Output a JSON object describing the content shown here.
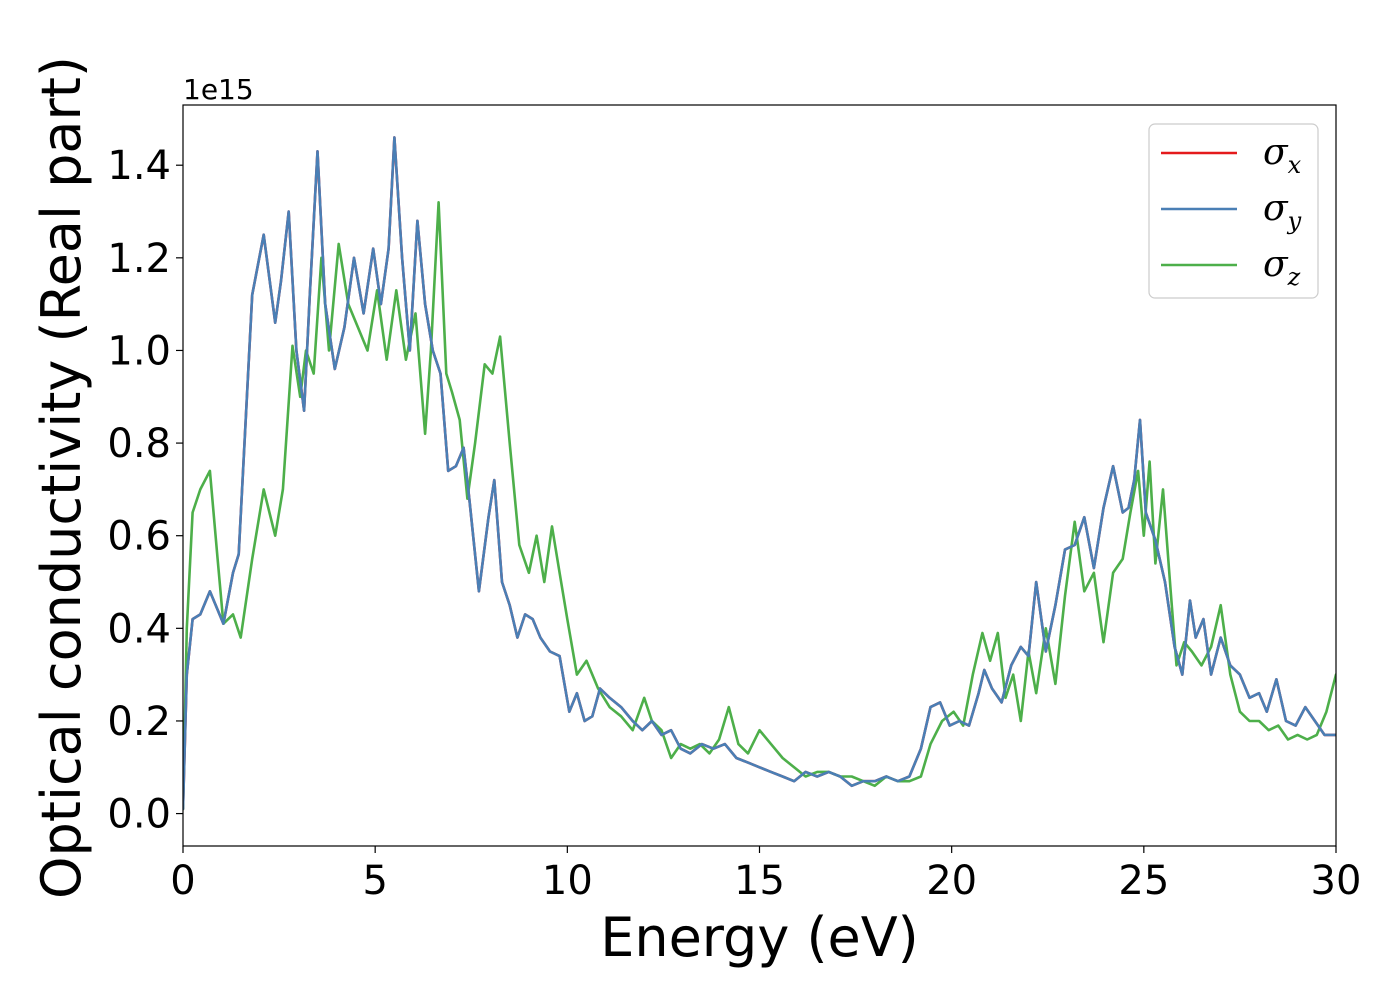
{
  "chart_data": {
    "type": "line",
    "title": "",
    "xlabel": "Energy (eV)",
    "ylabel": "Optical conductivity (Real part)",
    "y_offset_label": "1e15",
    "xlim": [
      0,
      30
    ],
    "ylim": [
      -0.07,
      1.53
    ],
    "x_ticks": [
      0,
      5,
      10,
      15,
      20,
      25,
      30
    ],
    "x_tick_labels": [
      "0",
      "5",
      "10",
      "15",
      "20",
      "25",
      "30"
    ],
    "y_ticks": [
      0.0,
      0.2,
      0.4,
      0.6,
      0.8,
      1.0,
      1.2,
      1.4
    ],
    "y_tick_labels": [
      "0.0",
      "0.2",
      "0.4",
      "0.6",
      "0.8",
      "1.0",
      "1.2",
      "1.4"
    ],
    "grid": false,
    "legend_position": "top-right",
    "series": [
      {
        "name": "σx",
        "legend_base": "σ",
        "legend_sub": "x",
        "color": "#e41a1c",
        "x": [
          0,
          0.1,
          0.25,
          0.45,
          0.7,
          0.9,
          1.05,
          1.3,
          1.45,
          1.6,
          1.8,
          2.1,
          2.4,
          2.55,
          2.75,
          2.95,
          3.15,
          3.3,
          3.5,
          3.7,
          3.95,
          4.2,
          4.45,
          4.7,
          4.95,
          5.15,
          5.35,
          5.5,
          5.7,
          5.9,
          6.1,
          6.3,
          6.5,
          6.7,
          6.9,
          7.1,
          7.3,
          7.45,
          7.7,
          7.95,
          8.1,
          8.3,
          8.5,
          8.7,
          8.9,
          9.1,
          9.3,
          9.55,
          9.8,
          10.05,
          10.25,
          10.45,
          10.65,
          10.85,
          11.1,
          11.4,
          11.7,
          11.95,
          12.2,
          12.45,
          12.7,
          12.95,
          13.2,
          13.5,
          13.8,
          14.1,
          14.4,
          14.7,
          15.0,
          15.3,
          15.6,
          15.9,
          16.2,
          16.5,
          16.8,
          17.1,
          17.4,
          17.7,
          18.0,
          18.3,
          18.6,
          18.9,
          19.2,
          19.45,
          19.7,
          19.95,
          20.2,
          20.45,
          20.7,
          20.85,
          21.05,
          21.3,
          21.55,
          21.8,
          22.0,
          22.2,
          22.45,
          22.7,
          22.95,
          23.2,
          23.45,
          23.7,
          23.95,
          24.2,
          24.45,
          24.6,
          24.75,
          24.9,
          25.05,
          25.3,
          25.55,
          25.8,
          26.0,
          26.2,
          26.35,
          26.55,
          26.75,
          27.0,
          27.25,
          27.5,
          27.75,
          28.0,
          28.2,
          28.45,
          28.7,
          28.95,
          29.2,
          29.45,
          29.7,
          30.0
        ],
        "y": [
          0.01,
          0.3,
          0.42,
          0.43,
          0.48,
          0.44,
          0.41,
          0.52,
          0.56,
          0.8,
          1.12,
          1.25,
          1.06,
          1.15,
          1.3,
          1.0,
          0.87,
          1.12,
          1.43,
          1.1,
          0.96,
          1.05,
          1.2,
          1.08,
          1.22,
          1.1,
          1.22,
          1.46,
          1.2,
          1.0,
          1.28,
          1.1,
          1.0,
          0.95,
          0.74,
          0.75,
          0.79,
          0.68,
          0.48,
          0.64,
          0.72,
          0.5,
          0.45,
          0.38,
          0.43,
          0.42,
          0.38,
          0.35,
          0.34,
          0.22,
          0.26,
          0.2,
          0.21,
          0.27,
          0.25,
          0.23,
          0.2,
          0.18,
          0.2,
          0.17,
          0.18,
          0.14,
          0.13,
          0.15,
          0.14,
          0.15,
          0.12,
          0.11,
          0.1,
          0.09,
          0.08,
          0.07,
          0.09,
          0.08,
          0.09,
          0.08,
          0.06,
          0.07,
          0.07,
          0.08,
          0.07,
          0.08,
          0.14,
          0.23,
          0.24,
          0.19,
          0.2,
          0.19,
          0.26,
          0.31,
          0.27,
          0.24,
          0.32,
          0.36,
          0.34,
          0.5,
          0.35,
          0.45,
          0.57,
          0.58,
          0.64,
          0.53,
          0.66,
          0.75,
          0.65,
          0.66,
          0.72,
          0.85,
          0.65,
          0.59,
          0.5,
          0.36,
          0.3,
          0.46,
          0.38,
          0.42,
          0.3,
          0.38,
          0.32,
          0.3,
          0.25,
          0.26,
          0.22,
          0.29,
          0.2,
          0.19,
          0.23,
          0.2,
          0.17,
          0.17
        ]
      },
      {
        "name": "σy",
        "legend_base": "σ",
        "legend_sub": "y",
        "color": "#4a7fb5",
        "x": [
          0,
          0.1,
          0.25,
          0.45,
          0.7,
          0.9,
          1.05,
          1.3,
          1.45,
          1.6,
          1.8,
          2.1,
          2.4,
          2.55,
          2.75,
          2.95,
          3.15,
          3.3,
          3.5,
          3.7,
          3.95,
          4.2,
          4.45,
          4.7,
          4.95,
          5.15,
          5.35,
          5.5,
          5.7,
          5.9,
          6.1,
          6.3,
          6.5,
          6.7,
          6.9,
          7.1,
          7.3,
          7.45,
          7.7,
          7.95,
          8.1,
          8.3,
          8.5,
          8.7,
          8.9,
          9.1,
          9.3,
          9.55,
          9.8,
          10.05,
          10.25,
          10.45,
          10.65,
          10.85,
          11.1,
          11.4,
          11.7,
          11.95,
          12.2,
          12.45,
          12.7,
          12.95,
          13.2,
          13.5,
          13.8,
          14.1,
          14.4,
          14.7,
          15.0,
          15.3,
          15.6,
          15.9,
          16.2,
          16.5,
          16.8,
          17.1,
          17.4,
          17.7,
          18.0,
          18.3,
          18.6,
          18.9,
          19.2,
          19.45,
          19.7,
          19.95,
          20.2,
          20.45,
          20.7,
          20.85,
          21.05,
          21.3,
          21.55,
          21.8,
          22.0,
          22.2,
          22.45,
          22.7,
          22.95,
          23.2,
          23.45,
          23.7,
          23.95,
          24.2,
          24.45,
          24.6,
          24.75,
          24.9,
          25.05,
          25.3,
          25.55,
          25.8,
          26.0,
          26.2,
          26.35,
          26.55,
          26.75,
          27.0,
          27.25,
          27.5,
          27.75,
          28.0,
          28.2,
          28.45,
          28.7,
          28.95,
          29.2,
          29.45,
          29.7,
          30.0
        ],
        "y": [
          0.01,
          0.3,
          0.42,
          0.43,
          0.48,
          0.44,
          0.41,
          0.52,
          0.56,
          0.8,
          1.12,
          1.25,
          1.06,
          1.15,
          1.3,
          1.0,
          0.87,
          1.12,
          1.43,
          1.1,
          0.96,
          1.05,
          1.2,
          1.08,
          1.22,
          1.1,
          1.22,
          1.46,
          1.2,
          1.0,
          1.28,
          1.1,
          1.0,
          0.95,
          0.74,
          0.75,
          0.79,
          0.68,
          0.48,
          0.64,
          0.72,
          0.5,
          0.45,
          0.38,
          0.43,
          0.42,
          0.38,
          0.35,
          0.34,
          0.22,
          0.26,
          0.2,
          0.21,
          0.27,
          0.25,
          0.23,
          0.2,
          0.18,
          0.2,
          0.17,
          0.18,
          0.14,
          0.13,
          0.15,
          0.14,
          0.15,
          0.12,
          0.11,
          0.1,
          0.09,
          0.08,
          0.07,
          0.09,
          0.08,
          0.09,
          0.08,
          0.06,
          0.07,
          0.07,
          0.08,
          0.07,
          0.08,
          0.14,
          0.23,
          0.24,
          0.19,
          0.2,
          0.19,
          0.26,
          0.31,
          0.27,
          0.24,
          0.32,
          0.36,
          0.34,
          0.5,
          0.35,
          0.45,
          0.57,
          0.58,
          0.64,
          0.53,
          0.66,
          0.75,
          0.65,
          0.66,
          0.72,
          0.85,
          0.65,
          0.59,
          0.5,
          0.36,
          0.3,
          0.46,
          0.38,
          0.42,
          0.3,
          0.38,
          0.32,
          0.3,
          0.25,
          0.26,
          0.22,
          0.29,
          0.2,
          0.19,
          0.23,
          0.2,
          0.17,
          0.17
        ]
      },
      {
        "name": "σz",
        "legend_base": "σ",
        "legend_sub": "z",
        "color": "#4daf4a",
        "x": [
          0,
          0.1,
          0.25,
          0.45,
          0.7,
          0.9,
          1.05,
          1.3,
          1.5,
          1.8,
          2.1,
          2.4,
          2.6,
          2.85,
          3.05,
          3.2,
          3.4,
          3.6,
          3.8,
          4.05,
          4.3,
          4.55,
          4.8,
          5.05,
          5.3,
          5.55,
          5.8,
          6.05,
          6.3,
          6.45,
          6.65,
          6.85,
          7.0,
          7.2,
          7.4,
          7.6,
          7.85,
          8.05,
          8.25,
          8.5,
          8.75,
          9.0,
          9.2,
          9.4,
          9.6,
          9.8,
          10.0,
          10.25,
          10.5,
          10.8,
          11.1,
          11.4,
          11.7,
          12.0,
          12.2,
          12.45,
          12.7,
          12.95,
          13.2,
          13.45,
          13.7,
          13.95,
          14.2,
          14.45,
          14.7,
          15.0,
          15.3,
          15.6,
          15.9,
          16.2,
          16.5,
          16.8,
          17.1,
          17.4,
          17.7,
          18.0,
          18.3,
          18.6,
          18.9,
          19.2,
          19.45,
          19.75,
          20.05,
          20.3,
          20.55,
          20.8,
          21.0,
          21.2,
          21.4,
          21.6,
          21.8,
          22.0,
          22.2,
          22.45,
          22.7,
          22.95,
          23.2,
          23.45,
          23.7,
          23.95,
          24.2,
          24.45,
          24.65,
          24.85,
          25.0,
          25.15,
          25.3,
          25.5,
          25.7,
          25.85,
          26.05,
          26.25,
          26.5,
          26.75,
          27.0,
          27.25,
          27.5,
          27.75,
          28.0,
          28.25,
          28.5,
          28.75,
          29.0,
          29.25,
          29.5,
          29.75,
          30.0
        ],
        "y": [
          0.01,
          0.4,
          0.65,
          0.7,
          0.74,
          0.55,
          0.41,
          0.43,
          0.38,
          0.55,
          0.7,
          0.6,
          0.7,
          1.01,
          0.9,
          1.0,
          0.95,
          1.2,
          1.0,
          1.23,
          1.1,
          1.05,
          1.0,
          1.13,
          0.98,
          1.13,
          0.98,
          1.08,
          0.82,
          1.0,
          1.32,
          0.95,
          0.91,
          0.85,
          0.68,
          0.8,
          0.97,
          0.95,
          1.03,
          0.8,
          0.58,
          0.52,
          0.6,
          0.5,
          0.62,
          0.52,
          0.42,
          0.3,
          0.33,
          0.27,
          0.23,
          0.21,
          0.18,
          0.25,
          0.2,
          0.18,
          0.12,
          0.15,
          0.14,
          0.15,
          0.13,
          0.16,
          0.23,
          0.15,
          0.13,
          0.18,
          0.15,
          0.12,
          0.1,
          0.08,
          0.09,
          0.09,
          0.08,
          0.08,
          0.07,
          0.06,
          0.08,
          0.07,
          0.07,
          0.08,
          0.15,
          0.2,
          0.22,
          0.19,
          0.3,
          0.39,
          0.33,
          0.39,
          0.25,
          0.3,
          0.2,
          0.35,
          0.26,
          0.4,
          0.28,
          0.47,
          0.63,
          0.48,
          0.52,
          0.37,
          0.52,
          0.55,
          0.65,
          0.74,
          0.6,
          0.76,
          0.54,
          0.7,
          0.48,
          0.32,
          0.37,
          0.35,
          0.32,
          0.36,
          0.45,
          0.3,
          0.22,
          0.2,
          0.2,
          0.18,
          0.19,
          0.16,
          0.17,
          0.16,
          0.17,
          0.22,
          0.3
        ]
      }
    ]
  }
}
